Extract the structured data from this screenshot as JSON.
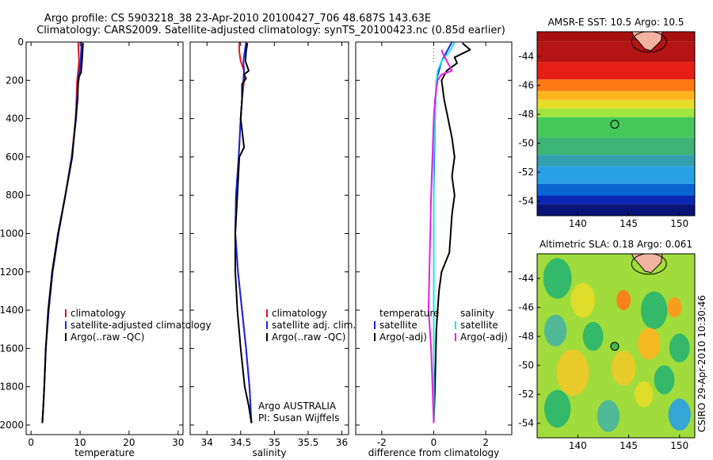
{
  "header": {
    "line1": "Argo profile: CS 5903218_38 23-Apr-2010 20100427_706 48.687S 143.63E",
    "line2": "Climatology: CARS2009. Satellite-adjusted climatology: synTS_20100423.nc (0.85d earlier)"
  },
  "side_label": "CSIRO 29-Apr-2010 10:30:46",
  "colors": {
    "climatology": "#e8141e",
    "satellite": "#1428e6",
    "argo": "#000000",
    "argo_adj": "#e61ee6",
    "satellite_diff": "#1ee6e6"
  },
  "chart_data": [
    {
      "type": "line",
      "id": "temperature",
      "xlabel": "temperature",
      "ylabel": "",
      "xlim": [
        -1,
        31
      ],
      "ylim": [
        2050,
        0
      ],
      "xticks": [
        0,
        10,
        20,
        30
      ],
      "yticks": [
        0,
        200,
        400,
        600,
        800,
        1000,
        1200,
        1400,
        1600,
        1800,
        2000
      ],
      "legend": [
        "climatology",
        "satellite-adjusted climatology",
        "Argo(..raw -QC)"
      ],
      "series": [
        {
          "name": "climatology",
          "color": "#e8141e",
          "x": [
            9.6,
            9.7,
            9.8,
            9.6,
            9.4,
            9.1,
            8.3,
            7.0,
            5.6,
            4.4,
            3.6,
            3.0,
            2.7,
            2.5,
            2.3
          ],
          "y": [
            0,
            50,
            100,
            150,
            200,
            400,
            600,
            800,
            1000,
            1200,
            1400,
            1600,
            1800,
            1900,
            1990
          ]
        },
        {
          "name": "satellite-adjusted climatology",
          "color": "#1428e6",
          "x": [
            10.3,
            10.2,
            10.1,
            9.9,
            9.6,
            9.2,
            8.3,
            7.0,
            5.6,
            4.4,
            3.6,
            3.0,
            2.7,
            2.5,
            2.3
          ],
          "y": [
            0,
            50,
            100,
            150,
            200,
            400,
            600,
            800,
            1000,
            1200,
            1400,
            1600,
            1800,
            1900,
            1990
          ]
        },
        {
          "name": "Argo(..raw -QC)",
          "color": "#000000",
          "x": [
            10.6,
            10.5,
            10.4,
            10.2,
            9.8,
            9.6,
            9.5,
            9.1,
            8.4,
            7.0,
            5.5,
            4.3,
            3.5,
            3.0,
            2.7,
            2.5,
            2.3
          ],
          "y": [
            5,
            50,
            100,
            160,
            180,
            220,
            300,
            400,
            600,
            800,
            1000,
            1200,
            1400,
            1600,
            1800,
            1900,
            1990
          ]
        }
      ]
    },
    {
      "type": "line",
      "id": "salinity",
      "xlabel": "salinity",
      "ylabel": "",
      "xlim": [
        33.75,
        36.1
      ],
      "ylim": [
        2050,
        0
      ],
      "xticks": [
        34,
        34.5,
        35,
        35.5,
        36
      ],
      "yticks": [
        0,
        200,
        400,
        600,
        800,
        1000,
        1200,
        1400,
        1600,
        1800,
        2000
      ],
      "legend": [
        "climatology",
        "satellite adj. clim.",
        "Argo(..raw -QC)"
      ],
      "annotation": [
        "Argo AUSTRALIA",
        "PI: Susan Wijffels"
      ],
      "series": [
        {
          "name": "climatology",
          "color": "#e8141e",
          "x": [
            34.48,
            34.48,
            34.5,
            34.55,
            34.55,
            34.52,
            34.5,
            34.47,
            34.43,
            34.42,
            34.46,
            34.52,
            34.58,
            34.63,
            34.66
          ],
          "y": [
            0,
            50,
            100,
            150,
            200,
            300,
            400,
            600,
            800,
            1000,
            1200,
            1400,
            1600,
            1800,
            1990
          ]
        },
        {
          "name": "satellite adj. clim.",
          "color": "#1428e6",
          "x": [
            34.58,
            34.56,
            34.54,
            34.55,
            34.54,
            34.52,
            34.5,
            34.47,
            34.43,
            34.42,
            34.46,
            34.52,
            34.58,
            34.63,
            34.66
          ],
          "y": [
            0,
            50,
            100,
            150,
            200,
            300,
            400,
            600,
            800,
            1000,
            1200,
            1400,
            1600,
            1800,
            1990
          ]
        },
        {
          "name": "Argo(..raw -QC)",
          "color": "#000000",
          "x": [
            34.6,
            34.58,
            34.57,
            34.62,
            34.55,
            34.58,
            34.52,
            34.52,
            34.5,
            34.55,
            34.48,
            34.45,
            34.42,
            34.42,
            34.45,
            34.5,
            34.56,
            34.62,
            34.66
          ],
          "y": [
            5,
            50,
            100,
            150,
            170,
            190,
            220,
            300,
            400,
            550,
            600,
            800,
            1000,
            1200,
            1400,
            1600,
            1800,
            1900,
            1990
          ]
        }
      ]
    },
    {
      "type": "line",
      "id": "difference",
      "xlabel": "difference from climatology",
      "ylabel": "",
      "xlim": [
        -3,
        3
      ],
      "ylim": [
        2050,
        0
      ],
      "xticks": [
        -2,
        0,
        2
      ],
      "yticks": [
        0,
        200,
        400,
        600,
        800,
        1000,
        1200,
        1400,
        1600,
        1800,
        2000
      ],
      "legend_left_title": "temperature",
      "legend_left": [
        "satellite",
        "Argo(-adj)"
      ],
      "legend_right_title": "salinity",
      "legend_right": [
        "satellite",
        "Argo(-adj)"
      ],
      "series": [
        {
          "name": "temperature satellite",
          "color": "#1428e6",
          "x": [
            0.7,
            0.5,
            0.3,
            0.2,
            0.1,
            0.05,
            0.02,
            0.0,
            0.0,
            0.0,
            0.0
          ],
          "y": [
            0,
            50,
            100,
            150,
            200,
            400,
            600,
            800,
            1000,
            1400,
            1990
          ]
        },
        {
          "name": "temperature Argo(-adj)",
          "color": "#000000",
          "x": [
            1.1,
            1.4,
            0.8,
            0.9,
            0.5,
            0.3,
            0.4,
            0.7,
            0.8,
            0.7,
            0.8,
            0.7,
            0.6,
            0.3,
            0.2,
            0.1,
            0.05,
            0.0
          ],
          "y": [
            5,
            40,
            80,
            110,
            150,
            200,
            300,
            500,
            600,
            700,
            800,
            900,
            1100,
            1200,
            1300,
            1500,
            1800,
            1990
          ]
        },
        {
          "name": "salinity satellite",
          "color": "#1ee6e6",
          "x": [
            0.8,
            0.6,
            0.3,
            0.15,
            0.1,
            0.05,
            0.0,
            0.0,
            0.0
          ],
          "y": [
            0,
            50,
            100,
            150,
            200,
            400,
            600,
            1000,
            1990
          ]
        },
        {
          "name": "salinity Argo(-adj)",
          "color": "#e61ee6",
          "x": [
            0.3,
            0.35,
            0.7,
            0.3,
            0.15,
            0.05,
            0.0,
            -0.1,
            -0.2,
            -0.1,
            -0.05,
            0.0
          ],
          "y": [
            40,
            60,
            150,
            170,
            200,
            300,
            400,
            800,
            1400,
            1600,
            1800,
            1990
          ]
        }
      ]
    },
    {
      "type": "heatmap",
      "id": "sst_map",
      "title": "AMSR-E SST: 10.5 Argo: 10.5",
      "xlim": [
        136,
        151.5
      ],
      "ylim": [
        -55,
        -42.3
      ],
      "xticks": [
        140,
        145,
        150
      ],
      "yticks": [
        -44,
        -46,
        -48,
        -50,
        -52,
        -54
      ],
      "argo_position": {
        "lon": 143.63,
        "lat": -48.687
      },
      "bands": [
        {
          "lat_top": -42.3,
          "color": "#a80f0f"
        },
        {
          "lat_top": -43.0,
          "color": "#b41414"
        },
        {
          "lat_top": -44.4,
          "color": "#e61e14"
        },
        {
          "lat_top": -45.6,
          "color": "#ff7814"
        },
        {
          "lat_top": -46.4,
          "color": "#ffb41e"
        },
        {
          "lat_top": -47.0,
          "color": "#e6dc28"
        },
        {
          "lat_top": -47.6,
          "color": "#a0e63c"
        },
        {
          "lat_top": -48.2,
          "color": "#46c85a"
        },
        {
          "lat_top": -49.6,
          "color": "#3cb473"
        },
        {
          "lat_top": -50.8,
          "color": "#32a0af"
        },
        {
          "lat_top": -51.6,
          "color": "#28a0e6"
        },
        {
          "lat_top": -52.8,
          "color": "#0a64d2"
        },
        {
          "lat_top": -53.6,
          "color": "#0a28b4"
        },
        {
          "lat_top": -54.2,
          "color": "#0a1478"
        }
      ]
    },
    {
      "type": "heatmap",
      "id": "sla_map",
      "title": "Altimetric SLA: 0.18 Argo: 0.061",
      "xlim": [
        136,
        151.5
      ],
      "ylim": [
        -55,
        -42.3
      ],
      "xticks": [
        140,
        145,
        150
      ],
      "yticks": [
        -44,
        -46,
        -48,
        -50,
        -52,
        -54
      ],
      "argo_position": {
        "lon": 143.63,
        "lat": -48.687
      },
      "background_color": "#a0dc3c",
      "blobs": [
        {
          "lon": 138.0,
          "lat": -44.0,
          "r": 1.4,
          "color": "#28b46e"
        },
        {
          "lon": 140.5,
          "lat": -45.5,
          "r": 1.2,
          "color": "#e6dc28"
        },
        {
          "lon": 144.5,
          "lat": -45.5,
          "r": 0.7,
          "color": "#ff7814"
        },
        {
          "lon": 147.5,
          "lat": -46.2,
          "r": 1.3,
          "color": "#28b46e"
        },
        {
          "lon": 149.5,
          "lat": -46.0,
          "r": 0.7,
          "color": "#ff9619"
        },
        {
          "lon": 137.8,
          "lat": -47.6,
          "r": 1.1,
          "color": "#46b4a0"
        },
        {
          "lon": 141.5,
          "lat": -48.0,
          "r": 1.0,
          "color": "#28b46e"
        },
        {
          "lon": 147.0,
          "lat": -48.5,
          "r": 1.1,
          "color": "#ffb41e"
        },
        {
          "lon": 150.0,
          "lat": -48.8,
          "r": 1.0,
          "color": "#28b46e"
        },
        {
          "lon": 139.5,
          "lat": -50.5,
          "r": 1.6,
          "color": "#f0c828"
        },
        {
          "lon": 144.5,
          "lat": -50.2,
          "r": 1.2,
          "color": "#f0c828"
        },
        {
          "lon": 148.5,
          "lat": -51.0,
          "r": 1.0,
          "color": "#28b46e"
        },
        {
          "lon": 138.0,
          "lat": -53.0,
          "r": 1.3,
          "color": "#28b46e"
        },
        {
          "lon": 143.0,
          "lat": -53.5,
          "r": 1.1,
          "color": "#46b4a0"
        },
        {
          "lon": 146.5,
          "lat": -52.0,
          "r": 0.9,
          "color": "#e6dc28"
        },
        {
          "lon": 150.0,
          "lat": -53.4,
          "r": 1.1,
          "color": "#28a0e6"
        }
      ]
    }
  ]
}
